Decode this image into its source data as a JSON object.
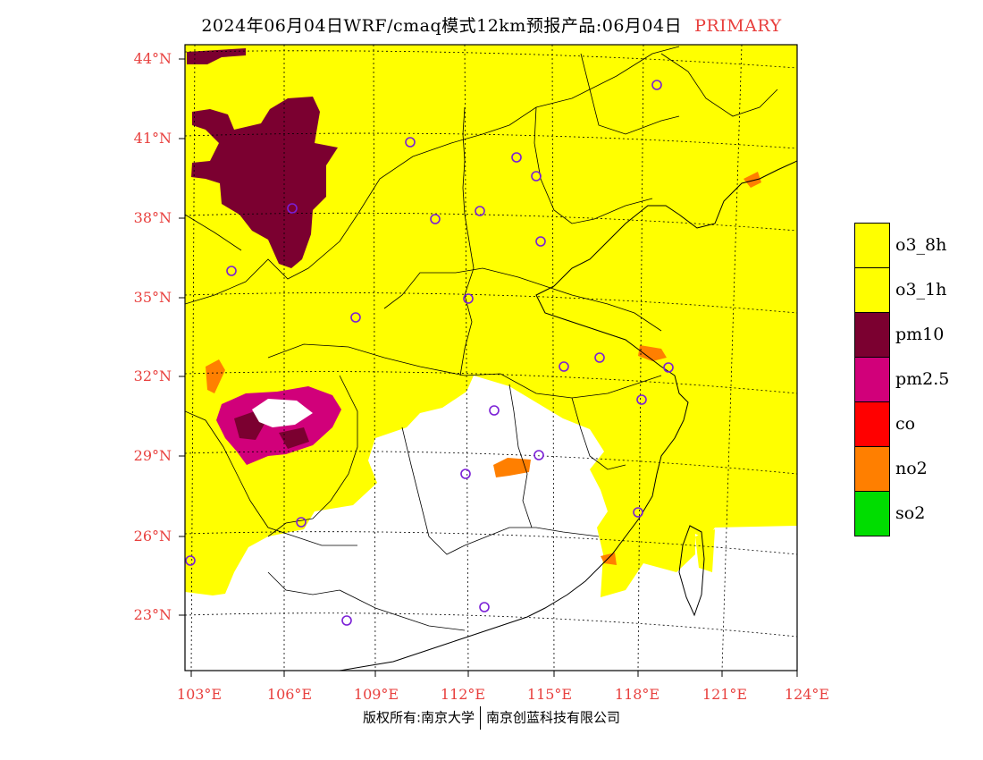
{
  "title": {
    "main": "2024年06月04日WRF/cmaq模式12km预报产品:06月04日",
    "tag": "PRIMARY"
  },
  "map": {
    "lat_labels": [
      "44°N",
      "41°N",
      "38°N",
      "35°N",
      "32°N",
      "29°N",
      "26°N",
      "23°N"
    ],
    "lon_labels": [
      "103°E",
      "106°E",
      "109°E",
      "112°E",
      "115°E",
      "118°E",
      "121°E",
      "124°E"
    ],
    "label_color": "#e8403e"
  },
  "legend": [
    {
      "label": "o3_8h",
      "color": "#ffff00"
    },
    {
      "label": "o3_1h",
      "color": "#ffff00"
    },
    {
      "label": "pm10",
      "color": "#7b0030"
    },
    {
      "label": "pm2.5",
      "color": "#d1007a"
    },
    {
      "label": "co",
      "color": "#ff0000"
    },
    {
      "label": "no2",
      "color": "#ff7f00"
    },
    {
      "label": "so2",
      "color": "#00dd00"
    }
  ],
  "footer": {
    "left": "版权所有:南京大学",
    "right": "南京创蓝科技有限公司"
  }
}
